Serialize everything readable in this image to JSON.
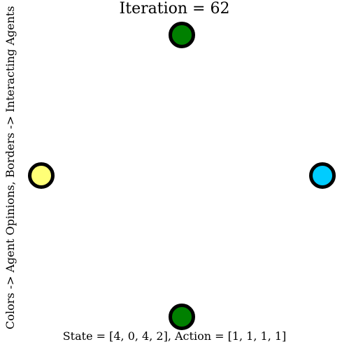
{
  "title": "Iteration = 62",
  "xlabel": "State = [4, 0, 4, 2], Action = [1, 1, 1, 1]",
  "ylabel": "Colors -> Agent Opinions, Borders -> Interacting Agents",
  "agents": [
    {
      "id": "top",
      "fill": "#008000",
      "border": "#000000"
    },
    {
      "id": "left",
      "fill": "#ffff77",
      "border": "#000000"
    },
    {
      "id": "right",
      "fill": "#00ccff",
      "border": "#000000"
    },
    {
      "id": "bottom",
      "fill": "#008000",
      "border": "#000000"
    }
  ]
}
